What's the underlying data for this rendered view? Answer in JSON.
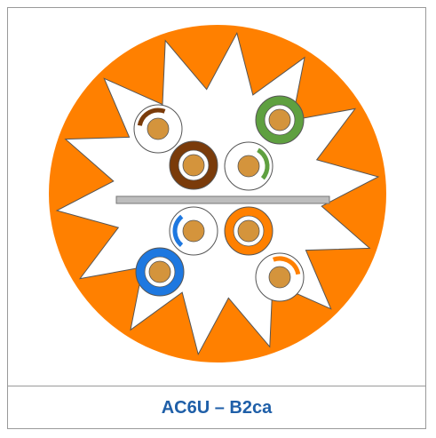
{
  "caption": "AC6U – B2ca"
}
